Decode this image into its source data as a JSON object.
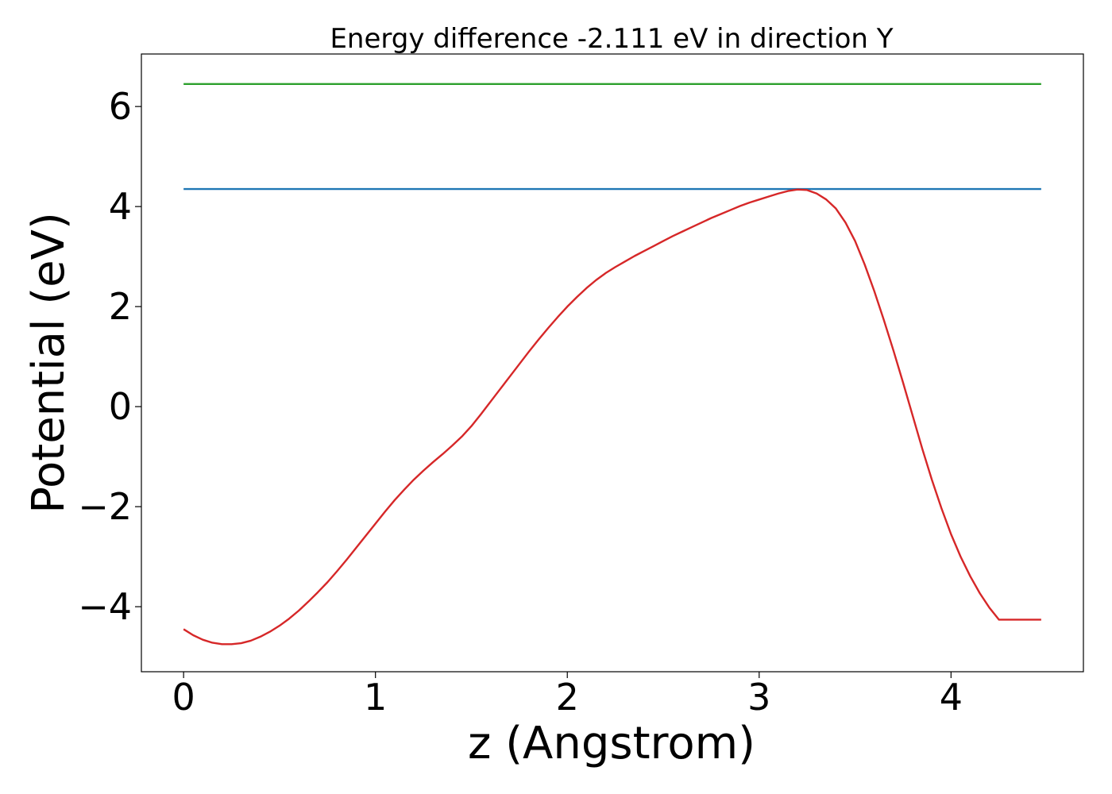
{
  "chart_data": {
    "type": "line",
    "title": "Energy difference -2.111 eV in direction Y",
    "xlabel": "z (Angstrom)",
    "ylabel": "Potential (eV)",
    "xlim": [
      -0.22,
      4.69
    ],
    "ylim": [
      -5.3,
      7.05
    ],
    "grid": false,
    "x_ticks": [
      0,
      1,
      2,
      3,
      4
    ],
    "y_ticks": [
      -4,
      -2,
      0,
      2,
      4,
      6
    ],
    "x_tick_labels": [
      "0",
      "1",
      "2",
      "3",
      "4"
    ],
    "y_tick_labels": [
      "−4",
      "−2",
      "0",
      "2",
      "4",
      "6"
    ],
    "series": [
      {
        "color": "#2ca02c",
        "x": [
          0,
          4.47
        ],
        "y": [
          6.45,
          6.45
        ]
      },
      {
        "color": "#1f77b4",
        "x": [
          0,
          4.47
        ],
        "y": [
          4.35,
          4.35
        ]
      },
      {
        "color": "#d62728",
        "x": [
          0,
          0.05,
          0.1,
          0.15,
          0.2,
          0.25,
          0.3,
          0.35,
          0.4,
          0.45,
          0.5,
          0.55,
          0.6,
          0.65,
          0.7,
          0.75,
          0.8,
          0.85,
          0.9,
          0.95,
          1.0,
          1.05,
          1.1,
          1.15,
          1.2,
          1.25,
          1.3,
          1.35,
          1.4,
          1.45,
          1.5,
          1.55,
          1.6,
          1.65,
          1.7,
          1.75,
          1.8,
          1.85,
          1.9,
          1.95,
          2.0,
          2.05,
          2.1,
          2.15,
          2.2,
          2.25,
          2.3,
          2.35,
          2.4,
          2.45,
          2.5,
          2.55,
          2.6,
          2.65,
          2.7,
          2.75,
          2.8,
          2.85,
          2.9,
          2.95,
          3.0,
          3.05,
          3.1,
          3.15,
          3.2,
          3.25,
          3.3,
          3.35,
          3.4,
          3.45,
          3.5,
          3.55,
          3.6,
          3.65,
          3.7,
          3.75,
          3.8,
          3.85,
          3.9,
          3.95,
          4.0,
          4.05,
          4.1,
          4.15,
          4.2,
          4.25,
          4.3,
          4.35,
          4.4,
          4.47
        ],
        "y": [
          -4.45,
          -4.57,
          -4.66,
          -4.72,
          -4.75,
          -4.75,
          -4.73,
          -4.68,
          -4.6,
          -4.5,
          -4.38,
          -4.24,
          -4.08,
          -3.9,
          -3.71,
          -3.51,
          -3.29,
          -3.06,
          -2.82,
          -2.58,
          -2.34,
          -2.1,
          -1.87,
          -1.66,
          -1.46,
          -1.28,
          -1.11,
          -0.95,
          -0.78,
          -0.6,
          -0.39,
          -0.15,
          0.1,
          0.35,
          0.6,
          0.85,
          1.1,
          1.34,
          1.57,
          1.79,
          2.0,
          2.19,
          2.37,
          2.53,
          2.67,
          2.79,
          2.9,
          3.01,
          3.11,
          3.21,
          3.31,
          3.41,
          3.5,
          3.59,
          3.68,
          3.77,
          3.85,
          3.93,
          4.01,
          4.08,
          4.14,
          4.2,
          4.26,
          4.31,
          4.34,
          4.33,
          4.26,
          4.14,
          3.96,
          3.68,
          3.31,
          2.84,
          2.31,
          1.73,
          1.12,
          0.48,
          -0.18,
          -0.84,
          -1.46,
          -2.03,
          -2.55,
          -3.0,
          -3.39,
          -3.73,
          -4.02,
          -4.26,
          -4.26,
          -4.26,
          -4.26,
          -4.26
        ]
      }
    ]
  }
}
